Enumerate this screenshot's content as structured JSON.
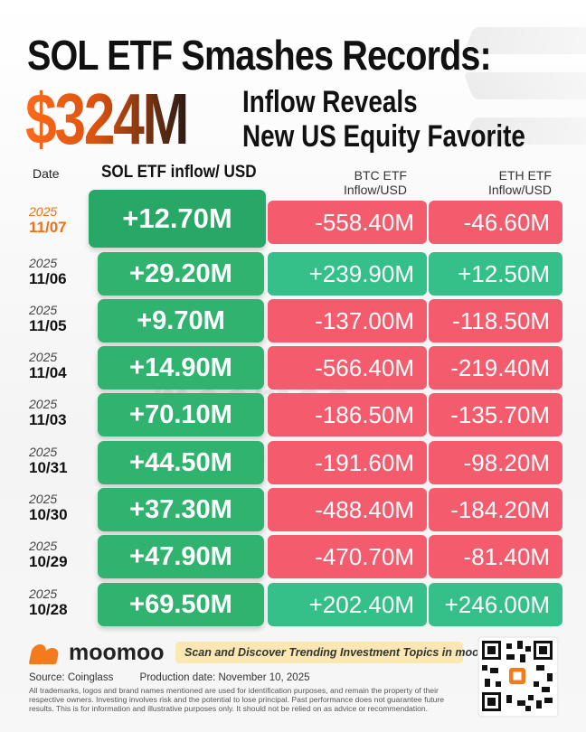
{
  "headline": {
    "line1": "SOL ETF Smashes Records:",
    "big_amount": "$324M",
    "sub_line1": "Inflow Reveals",
    "sub_line2": "New US Equity Favorite"
  },
  "table": {
    "header_date": "Date",
    "header_sol": "SOL ETF inflow/ USD",
    "header_btc_1": "BTC ETF",
    "header_btc_2": "Inflow/USD",
    "header_eth_1": "ETH ETF",
    "header_eth_2": "Inflow/USD",
    "rows": [
      {
        "year": "2025",
        "date": "11/07",
        "sol": "+12.70M",
        "btc": "-558.40M",
        "eth": "-46.60M",
        "btc_sign": "neg",
        "eth_sign": "neg"
      },
      {
        "year": "2025",
        "date": "11/06",
        "sol": "+29.20M",
        "btc": "+239.90M",
        "eth": "+12.50M",
        "btc_sign": "pos",
        "eth_sign": "pos"
      },
      {
        "year": "2025",
        "date": "11/05",
        "sol": "+9.70M",
        "btc": "-137.00M",
        "eth": "-118.50M",
        "btc_sign": "neg",
        "eth_sign": "neg"
      },
      {
        "year": "2025",
        "date": "11/04",
        "sol": "+14.90M",
        "btc": "-566.40M",
        "eth": "-219.40M",
        "btc_sign": "neg",
        "eth_sign": "neg"
      },
      {
        "year": "2025",
        "date": "11/03",
        "sol": "+70.10M",
        "btc": "-186.50M",
        "eth": "-135.70M",
        "btc_sign": "neg",
        "eth_sign": "neg"
      },
      {
        "year": "2025",
        "date": "10/31",
        "sol": "+44.50M",
        "btc": "-191.60M",
        "eth": "-98.20M",
        "btc_sign": "neg",
        "eth_sign": "neg"
      },
      {
        "year": "2025",
        "date": "10/30",
        "sol": "+37.30M",
        "btc": "-488.40M",
        "eth": "-184.20M",
        "btc_sign": "neg",
        "eth_sign": "neg"
      },
      {
        "year": "2025",
        "date": "10/29",
        "sol": "+47.90M",
        "btc": "-470.70M",
        "eth": "-81.40M",
        "btc_sign": "neg",
        "eth_sign": "neg"
      },
      {
        "year": "2025",
        "date": "10/28",
        "sol": "+69.50M",
        "btc": "+202.40M",
        "eth": "+246.00M",
        "btc_sign": "pos",
        "eth_sign": "pos"
      }
    ]
  },
  "colors": {
    "accent_orange": "#f07016",
    "sol_green": "#2fb36f",
    "negative_red": "#f45b6c",
    "positive_green": "#35c08a"
  },
  "watermark": "moomoo",
  "footer": {
    "brand": "moomoo",
    "brand_icon": "moomoo-logo-icon",
    "banner": "Scan and Discover Trending Investment Topics in moomoo",
    "source": "Source: Coinglass",
    "production": "Production date: November 10, 2025",
    "disclaimer": "All trademarks, logos and brand names mentioned are used for identification purposes, and remain the property of their respective owners. Investing involves risk and the potential to lose principal. Past performance does not guarantee future results. This is for information and illustrative purposes only. It should not be relied on as advice or recommendation.",
    "qr_icon": "qr-code-icon"
  }
}
